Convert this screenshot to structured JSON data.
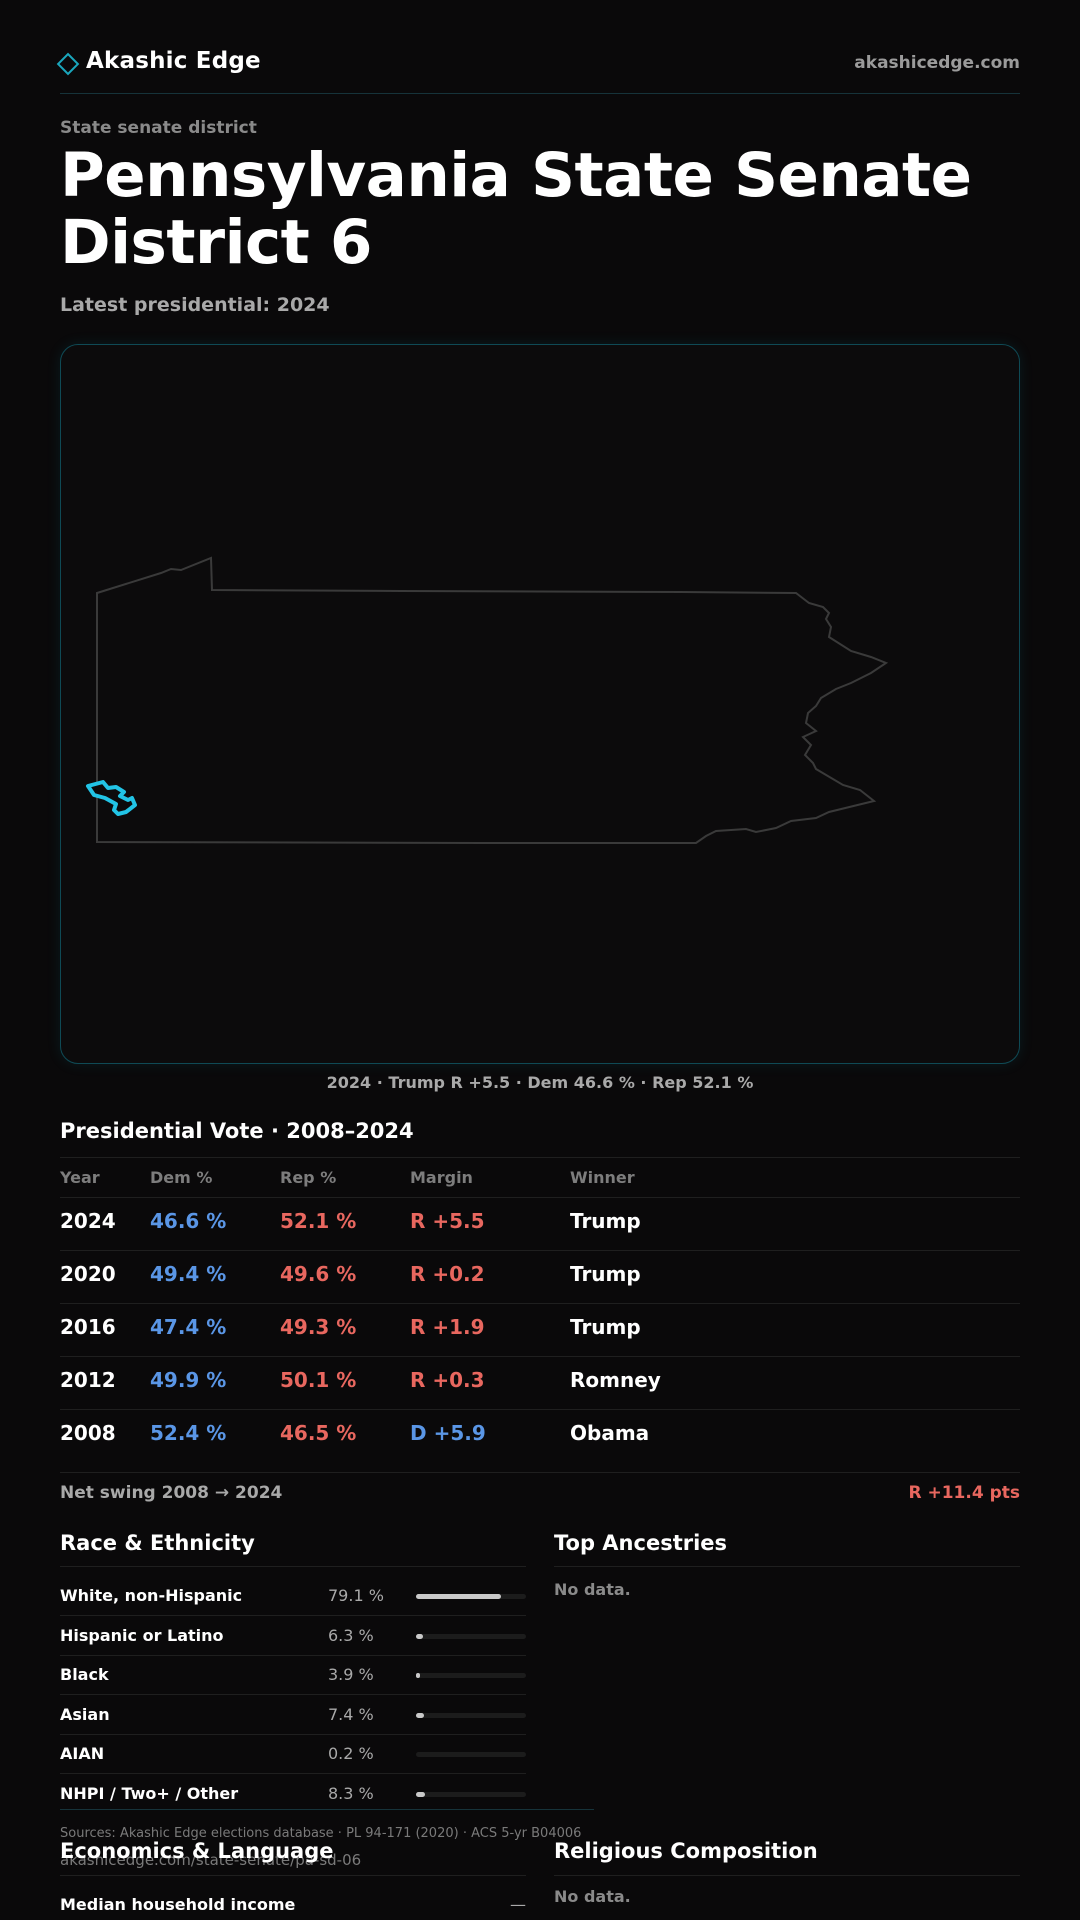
{
  "header": {
    "brand": "Akashic Edge",
    "site": "akashicedge.com",
    "kicker": "State senate district",
    "title": "Pennsylvania State Senate District 6",
    "subtitle": "Latest presidential: 2024"
  },
  "map": {
    "caption": "2024 · Trump R +5.5 · Dem 46.6 % · Rep 52.1 %",
    "highlight_color": "#22c4e6"
  },
  "vote_table": {
    "heading": "Presidential Vote · 2008–2024",
    "columns": [
      "Year",
      "Dem %",
      "Rep %",
      "Margin",
      "Winner"
    ],
    "rows": [
      {
        "year": "2024",
        "dem": "46.6 %",
        "rep": "52.1 %",
        "margin": "R +5.5",
        "margin_party": "R",
        "winner": "Trump"
      },
      {
        "year": "2020",
        "dem": "49.4 %",
        "rep": "49.6 %",
        "margin": "R +0.2",
        "margin_party": "R",
        "winner": "Trump"
      },
      {
        "year": "2016",
        "dem": "47.4 %",
        "rep": "49.3 %",
        "margin": "R +1.9",
        "margin_party": "R",
        "winner": "Trump"
      },
      {
        "year": "2012",
        "dem": "49.9 %",
        "rep": "50.1 %",
        "margin": "R +0.3",
        "margin_party": "R",
        "winner": "Romney"
      },
      {
        "year": "2008",
        "dem": "52.4 %",
        "rep": "46.5 %",
        "margin": "D +5.9",
        "margin_party": "D",
        "winner": "Obama"
      }
    ],
    "swing_label": "Net swing 2008 → 2024",
    "swing_value": "R +11.4 pts"
  },
  "race": {
    "heading": "Race & Ethnicity",
    "rows": [
      {
        "label": "White, non-Hispanic",
        "value": "79.1 %",
        "fraction": 0.791
      },
      {
        "label": "Hispanic or Latino",
        "value": "6.3 %",
        "fraction": 0.063
      },
      {
        "label": "Black",
        "value": "3.9 %",
        "fraction": 0.039
      },
      {
        "label": "Asian",
        "value": "7.4 %",
        "fraction": 0.074
      },
      {
        "label": "AIAN",
        "value": "0.2 %",
        "fraction": 0.002
      },
      {
        "label": "NHPI / Two+ / Other",
        "value": "8.3 %",
        "fraction": 0.083
      }
    ]
  },
  "ancestries": {
    "heading": "Top Ancestries",
    "empty": "No data."
  },
  "economics": {
    "heading": "Economics & Language",
    "rows": [
      {
        "label": "Median household income",
        "value": "—"
      }
    ]
  },
  "religion": {
    "heading": "Religious Composition",
    "empty": "No data."
  },
  "footer": {
    "sources": "Sources: Akashic Edge elections database · PL 94-171 (2020) · ACS 5-yr B04006",
    "url": "akashicedge.com/state-senate/pa-sd-06"
  }
}
